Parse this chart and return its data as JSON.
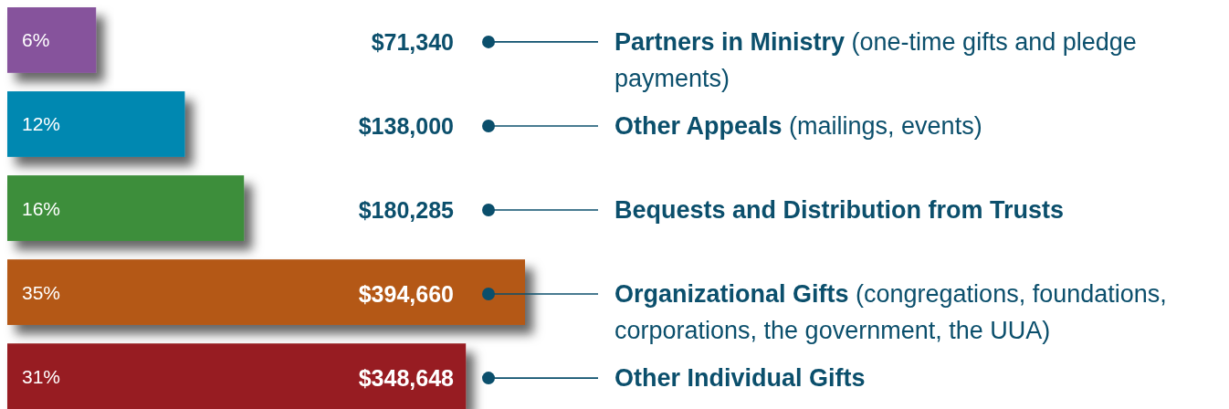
{
  "chart_data": {
    "type": "bar",
    "orientation": "horizontal",
    "categories": [
      "Partners in Ministry (one-time gifts and pledge payments)",
      "Other Appeals (mailings, events)",
      "Bequests and Distribution from Trusts",
      "Organizational Gifts (congregations, foundations, corporations, the government, the UUA)",
      "Other Individual Gifts"
    ],
    "values": [
      6,
      12,
      16,
      35,
      31
    ],
    "colors": [
      "#86529c",
      "#0088b1",
      "#3c8e3a",
      "#b45914",
      "#971f22"
    ],
    "value_labels": [
      "6%",
      "12%",
      "16%",
      "35%",
      "31%"
    ],
    "annotations": [
      "$71,340",
      "$138,000",
      "$180,285",
      "$394,660",
      "$348,648"
    ],
    "tick_labels": "y"
  }
}
